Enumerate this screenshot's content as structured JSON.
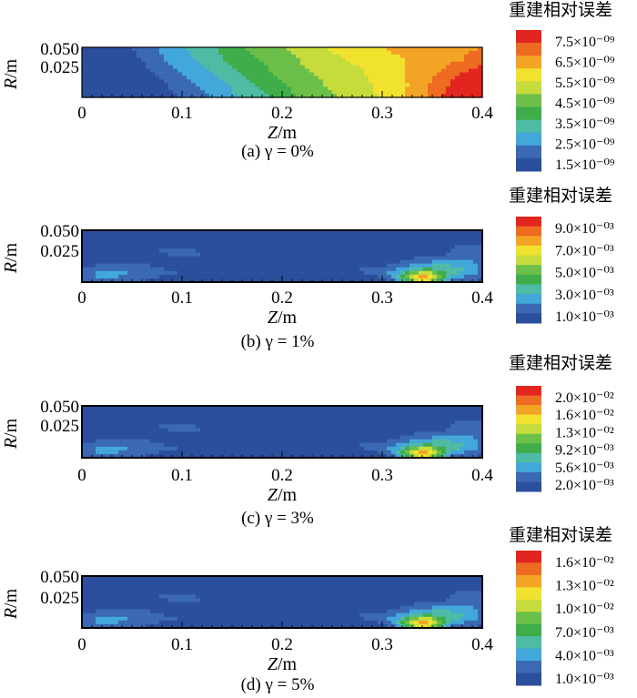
{
  "colors": {
    "scale": [
      "#2b4f9c",
      "#3b69b3",
      "#42a7d9",
      "#50bba4",
      "#3fae4a",
      "#6cc04a",
      "#c6dc3c",
      "#f1e22f",
      "#f4a425",
      "#ee6b22",
      "#e2251f"
    ]
  },
  "chart_data": [
    {
      "type": "heatmap",
      "panel": "a",
      "caption": "(a) γ = 0%",
      "xlabel": "Z/m",
      "ylabel": "R/m",
      "x_ticks": [
        "0",
        "0.1",
        "0.2",
        "0.3",
        "0.4"
      ],
      "y_ticks": [
        "0.050",
        "0.025"
      ],
      "xlim": [
        0,
        0.4
      ],
      "ylim": [
        0,
        0.05
      ],
      "legend_title": "重建相对误差",
      "legend_labels": [
        "7.5×10⁻⁰⁹",
        "6.5×10⁻⁰⁹",
        "5.5×10⁻⁰⁹",
        "4.5×10⁻⁰⁹",
        "3.5×10⁻⁰⁹",
        "2.5×10⁻⁰⁹",
        "1.5×10⁻⁰⁹"
      ],
      "color_range": [
        1.5e-09,
        8e-09
      ],
      "field": "smooth",
      "values": [
        [
          1.5,
          1.6,
          1.9,
          2.3,
          2.8,
          3.2,
          3.6,
          4.0,
          4.4,
          4.7,
          5.0,
          5.3,
          5.6,
          5.8,
          6.0,
          6.2,
          6.4,
          6.5,
          6.6,
          6.7,
          6.8
        ],
        [
          1.5,
          1.6,
          1.8,
          2.1,
          2.6,
          3.0,
          3.4,
          3.8,
          4.2,
          4.5,
          4.8,
          5.1,
          5.4,
          5.6,
          5.8,
          6.0,
          6.2,
          6.4,
          6.6,
          6.8,
          7.2
        ],
        [
          1.5,
          1.5,
          1.6,
          1.9,
          2.3,
          2.7,
          3.1,
          3.5,
          3.9,
          4.3,
          4.6,
          4.9,
          5.2,
          5.4,
          5.6,
          5.9,
          6.2,
          6.5,
          6.9,
          7.4,
          7.8
        ],
        [
          1.5,
          1.5,
          1.5,
          1.7,
          2.0,
          2.4,
          2.8,
          3.2,
          3.6,
          4.0,
          4.4,
          4.7,
          5.0,
          5.3,
          5.5,
          5.8,
          6.1,
          6.6,
          7.2,
          7.8,
          8.0
        ],
        [
          1.5,
          1.5,
          1.5,
          1.6,
          1.8,
          2.1,
          2.5,
          2.9,
          3.3,
          3.7,
          4.2,
          4.5,
          4.8,
          5.1,
          5.4,
          5.7,
          6.1,
          6.7,
          7.4,
          8.0,
          8.0
        ]
      ]
    },
    {
      "type": "heatmap",
      "panel": "b",
      "caption": "(b) γ = 1%",
      "xlabel": "Z/m",
      "ylabel": "R/m",
      "x_ticks": [
        "0",
        "0.1",
        "0.2",
        "0.3",
        "0.4"
      ],
      "y_ticks": [
        "0.050",
        "0.025"
      ],
      "xlim": [
        0,
        0.4
      ],
      "ylim": [
        0,
        0.05
      ],
      "legend_title": "重建相对误差",
      "legend_labels": [
        "9.0×10⁻⁰³",
        "7.0×10⁻⁰³",
        "5.0×10⁻⁰³",
        "3.0×10⁻⁰³",
        "1.0×10⁻⁰³"
      ],
      "color_range": [
        0.001,
        0.0105
      ],
      "field": "noisy"
    },
    {
      "type": "heatmap",
      "panel": "c",
      "caption": "(c) γ = 3%",
      "xlabel": "Z/m",
      "ylabel": "R/m",
      "x_ticks": [
        "0",
        "0.1",
        "0.2",
        "0.3",
        "0.4"
      ],
      "y_ticks": [
        "0.050",
        "0.025"
      ],
      "xlim": [
        0,
        0.4
      ],
      "ylim": [
        0,
        0.05
      ],
      "legend_title": "重建相对误差",
      "legend_labels": [
        "2.0×10⁻⁰²",
        "1.6×10⁻⁰²",
        "1.3×10⁻⁰²",
        "9.2×10⁻⁰³",
        "5.6×10⁻⁰³",
        "2.0×10⁻⁰³"
      ],
      "color_range": [
        0.002,
        0.021
      ],
      "field": "noisy"
    },
    {
      "type": "heatmap",
      "panel": "d",
      "caption": "(d) γ = 5%",
      "xlabel": "Z/m",
      "ylabel": "R/m",
      "x_ticks": [
        "0",
        "0.1",
        "0.2",
        "0.3",
        "0.4"
      ],
      "y_ticks": [
        "0.050",
        "0.025"
      ],
      "xlim": [
        0,
        0.4
      ],
      "ylim": [
        0,
        0.05
      ],
      "legend_title": "重建相对误差",
      "legend_labels": [
        "1.6×10⁻⁰²",
        "1.3×10⁻⁰²",
        "1.0×10⁻⁰²",
        "7.0×10⁻⁰³",
        "4.0×10⁻⁰³",
        "1.0×10⁻⁰³"
      ],
      "color_range": [
        0.001,
        0.0175
      ],
      "field": "noisy"
    }
  ]
}
